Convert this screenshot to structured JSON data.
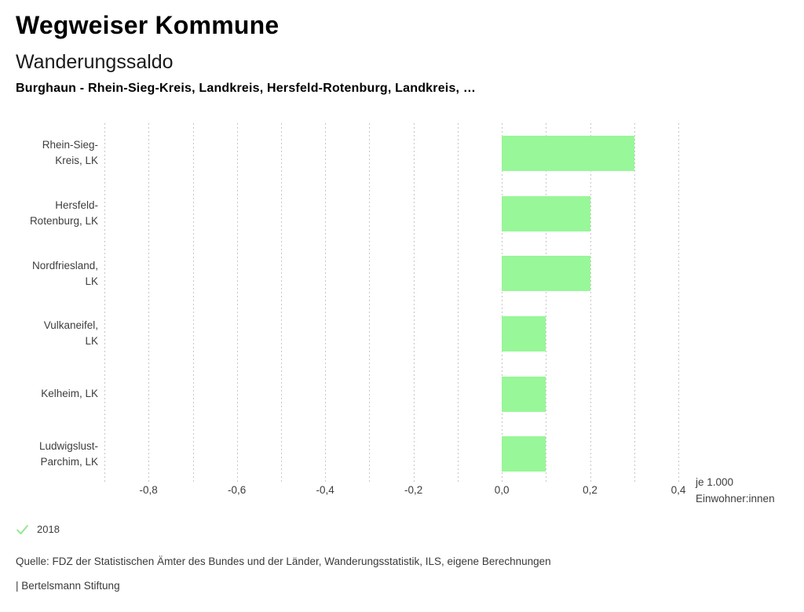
{
  "header": {
    "app_title": "Wegweiser Kommune",
    "chart_title": "Wanderungssaldo",
    "chart_subtitle": "Burghaun - Rhein-Sieg-Kreis, Landkreis, Hersfeld-Rotenburg, Landkreis, …"
  },
  "chart_data": {
    "type": "bar",
    "orientation": "horizontal",
    "title": "Wanderungssaldo",
    "categories": [
      "Rhein-Sieg-Kreis, LK",
      "Hersfeld-Rotenburg, LK",
      "Nordfriesland, LK",
      "Vulkaneifel, LK",
      "Kelheim, LK",
      "Ludwigslust-Parchim, LK"
    ],
    "category_lines": [
      [
        "Rhein-Sieg-",
        "Kreis, LK"
      ],
      [
        "Hersfeld-",
        "Rotenburg, LK"
      ],
      [
        "Nordfriesland,",
        "LK"
      ],
      [
        "Vulkaneifel,",
        "LK"
      ],
      [
        "Kelheim, LK"
      ],
      [
        "Ludwigslust-",
        "Parchim, LK"
      ]
    ],
    "series": [
      {
        "name": "2018",
        "values": [
          0.3,
          0.2,
          0.2,
          0.1,
          0.1,
          0.1
        ]
      }
    ],
    "xlim": [
      -0.9,
      0.4
    ],
    "x_ticks": [
      -0.8,
      -0.6,
      -0.4,
      -0.2,
      0.0,
      0.2,
      0.4
    ],
    "x_tick_labels": [
      "-0,8",
      "-0,6",
      "-0,4",
      "-0,2",
      "0,0",
      "0,2",
      "0,4"
    ],
    "gridline_step": 0.1,
    "grid": "vertical-dashed",
    "unit_label_lines": [
      "je 1.000",
      "Einwohner:innen"
    ],
    "bar_color": "#98f798",
    "gridline_color": "#c6c6c6",
    "legend": {
      "marker": "check-icon",
      "label": "2018",
      "color": "#98e698",
      "position": "bottom-left"
    }
  },
  "footer": {
    "source": "Quelle: FDZ der Statistischen Ämter des Bundes und der Länder, Wanderungsstatistik, ILS, eigene Berechnungen",
    "branding": "| Bertelsmann Stiftung"
  }
}
